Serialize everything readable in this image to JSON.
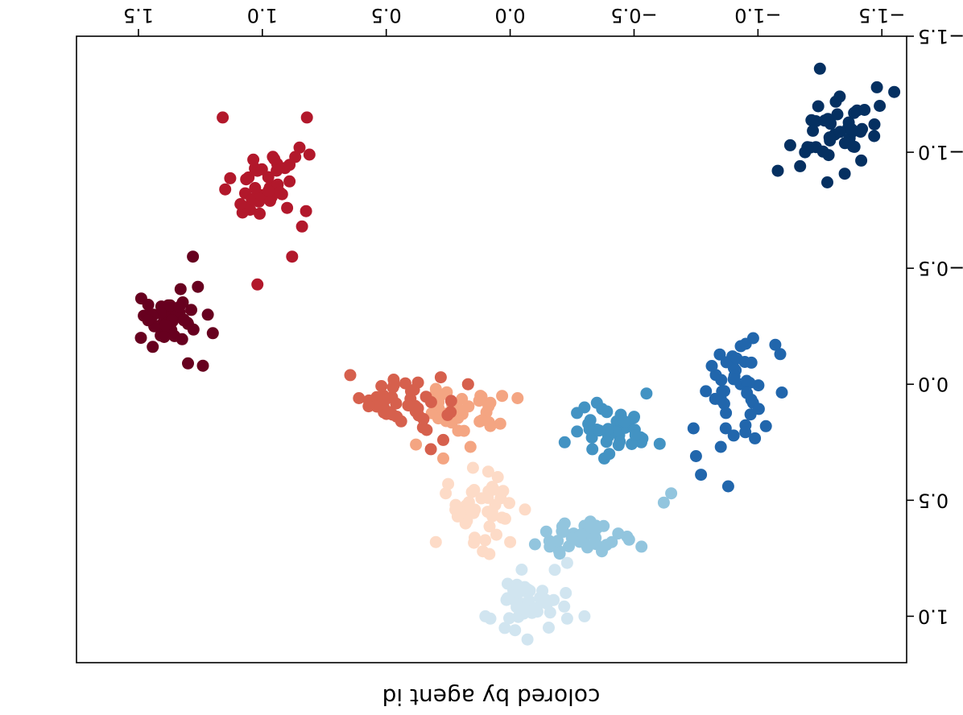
{
  "chart_data": {
    "type": "scatter",
    "title": "",
    "xlabel": "colored by agent id",
    "ylabel": "",
    "xlim": [
      -1.6,
      1.75
    ],
    "ylim": [
      -1.5,
      1.2
    ],
    "x_ticks": [
      -1.5,
      -1.0,
      -0.5,
      0.0,
      0.5,
      1.0,
      1.5
    ],
    "x_tick_labels": [
      "−1.5",
      "−1.0",
      "−0.5",
      "0.0",
      "0.5",
      "1.0",
      "1.5"
    ],
    "y_ticks": [
      -1.5,
      -1.0,
      -0.5,
      0.0,
      0.5,
      1.0
    ],
    "y_tick_labels": [
      "−1.5",
      "−1.0",
      "−0.5",
      "0.0",
      "0.5",
      "1.0"
    ],
    "grid": false,
    "legend": false,
    "colormap": "RdBu",
    "series": [
      {
        "color": "#053061",
        "center": [
          -1.32,
          -1.08
        ],
        "spread": [
          0.14,
          0.12
        ],
        "points": [
          [
            -1.28,
            -0.87
          ],
          [
            -1.55,
            -1.26
          ],
          [
            -1.48,
            -1.28
          ],
          [
            -1.17,
            -0.94
          ],
          [
            -1.21,
            -1.02
          ],
          [
            -1.4,
            -1.18
          ],
          [
            -1.25,
            -1.36
          ],
          [
            -1.47,
            -1.12
          ],
          [
            -1.13,
            -1.03
          ],
          [
            -1.08,
            -0.92
          ],
          [
            -1.33,
            -1.24
          ],
          [
            -1.37,
            -1.06
          ],
          [
            -1.19,
            -1.0
          ],
          [
            -1.42,
            -1.1
          ]
        ]
      },
      {
        "color": "#2166ac",
        "center": [
          -0.92,
          0.03
        ],
        "spread": [
          0.12,
          0.18
        ],
        "points": [
          [
            -0.88,
            0.44
          ],
          [
            -0.77,
            0.39
          ],
          [
            -0.75,
            0.31
          ],
          [
            -0.74,
            0.19
          ],
          [
            -0.85,
            0.27
          ],
          [
            -0.97,
            0.13
          ],
          [
            -0.93,
            0.0
          ],
          [
            -0.91,
            -0.06
          ],
          [
            -1.09,
            -0.13
          ],
          [
            -1.07,
            -0.17
          ],
          [
            -0.98,
            0.08
          ],
          [
            -0.79,
            0.03
          ],
          [
            -0.83,
            -0.04
          ],
          [
            -0.87,
            0.19
          ]
        ]
      },
      {
        "color": "#4393c3",
        "center": [
          -0.42,
          0.18
        ],
        "spread": [
          0.14,
          0.09
        ],
        "points": [
          [
            -0.38,
            0.32
          ],
          [
            -0.4,
            0.3
          ],
          [
            -0.22,
            0.25
          ],
          [
            -0.33,
            0.23
          ],
          [
            -0.5,
            0.14
          ],
          [
            -0.55,
            0.04
          ],
          [
            -0.35,
            0.08
          ],
          [
            -0.43,
            0.16
          ],
          [
            -0.39,
            0.12
          ],
          [
            -0.48,
            0.18
          ],
          [
            -0.3,
            0.1
          ],
          [
            -0.44,
            0.22
          ]
        ]
      },
      {
        "color": "#92c5de",
        "center": [
          -0.27,
          0.66
        ],
        "spread": [
          0.17,
          0.07
        ],
        "points": [
          [
            -0.65,
            0.47
          ],
          [
            -0.62,
            0.51
          ],
          [
            -0.53,
            0.7
          ],
          [
            -0.34,
            0.64
          ],
          [
            -0.22,
            0.6
          ],
          [
            -0.1,
            0.69
          ],
          [
            -0.41,
            0.68
          ],
          [
            -0.2,
            0.73
          ],
          [
            -0.16,
            0.7
          ],
          [
            -0.48,
            0.67
          ],
          [
            -0.3,
            0.61
          ],
          [
            -0.37,
            0.72
          ]
        ]
      },
      {
        "color": "#d1e5f0",
        "center": [
          -0.07,
          0.93
        ],
        "spread": [
          0.12,
          0.1
        ],
        "points": [
          [
            0.1,
            1.0
          ],
          [
            0.08,
            1.01
          ],
          [
            -0.3,
            1.0
          ],
          [
            -0.23,
            1.01
          ],
          [
            -0.02,
            1.06
          ],
          [
            -0.07,
            1.1
          ],
          [
            -0.13,
            0.89
          ],
          [
            0.01,
            0.86
          ],
          [
            -0.18,
            0.8
          ],
          [
            -0.23,
            0.77
          ],
          [
            -0.05,
            0.95
          ],
          [
            0.0,
            0.92
          ],
          [
            -0.11,
            0.98
          ]
        ]
      },
      {
        "color": "#fddbc7",
        "center": [
          0.12,
          0.55
        ],
        "spread": [
          0.1,
          0.12
        ],
        "points": [
          [
            0.11,
            0.72
          ],
          [
            0.0,
            0.68
          ],
          [
            0.02,
            0.58
          ],
          [
            -0.06,
            0.54
          ],
          [
            0.22,
            0.52
          ],
          [
            0.26,
            0.47
          ],
          [
            0.15,
            0.36
          ],
          [
            0.05,
            0.4
          ],
          [
            0.18,
            0.6
          ],
          [
            0.09,
            0.49
          ],
          [
            0.3,
            0.68
          ],
          [
            0.25,
            0.43
          ]
        ]
      },
      {
        "color": "#f4a582",
        "center": [
          0.2,
          0.12
        ],
        "spread": [
          0.14,
          0.09
        ],
        "points": [
          [
            0.27,
            0.32
          ],
          [
            0.04,
            0.17
          ],
          [
            -0.03,
            0.06
          ],
          [
            0.08,
            0.08
          ],
          [
            0.17,
            0.0
          ],
          [
            0.3,
            0.11
          ],
          [
            0.38,
            0.26
          ],
          [
            0.21,
            0.2
          ],
          [
            0.12,
            0.05
          ],
          [
            0.3,
            0.02
          ],
          [
            0.16,
            0.27
          ],
          [
            0.08,
            0.18
          ]
        ]
      },
      {
        "color": "#d6604d",
        "center": [
          0.42,
          0.06
        ],
        "spread": [
          0.15,
          0.11
        ],
        "points": [
          [
            0.61,
            0.06
          ],
          [
            0.57,
            0.07
          ],
          [
            0.44,
            0.16
          ],
          [
            0.27,
            0.24
          ],
          [
            0.32,
            0.28
          ],
          [
            0.28,
            -0.03
          ],
          [
            0.47,
            -0.02
          ],
          [
            0.4,
            0.03
          ],
          [
            0.17,
            0.0
          ],
          [
            0.51,
            0.1
          ],
          [
            0.35,
            0.15
          ],
          [
            0.24,
            0.12
          ]
        ]
      },
      {
        "color": "#b2182b",
        "center": [
          1.0,
          -0.85
        ],
        "spread": [
          0.12,
          0.14
        ],
        "points": [
          [
            1.02,
            -0.43
          ],
          [
            0.88,
            -0.55
          ],
          [
            0.84,
            -0.68
          ],
          [
            0.9,
            -0.76
          ],
          [
            1.08,
            -0.74
          ],
          [
            1.15,
            -0.84
          ],
          [
            1.02,
            -0.92
          ],
          [
            0.94,
            -0.95
          ],
          [
            0.97,
            -0.82
          ],
          [
            1.03,
            -0.93
          ],
          [
            0.85,
            -1.02
          ],
          [
            0.81,
            -0.99
          ],
          [
            1.16,
            -1.15
          ],
          [
            0.82,
            -1.15
          ]
        ]
      },
      {
        "color": "#67001f",
        "center": [
          1.38,
          -0.28
        ],
        "spread": [
          0.11,
          0.09
        ],
        "points": [
          [
            1.3,
            -0.09
          ],
          [
            1.24,
            -0.08
          ],
          [
            1.49,
            -0.2
          ],
          [
            1.3,
            -0.26
          ],
          [
            1.2,
            -0.22
          ],
          [
            1.44,
            -0.3
          ],
          [
            1.38,
            -0.34
          ],
          [
            1.33,
            -0.41
          ],
          [
            1.26,
            -0.42
          ],
          [
            1.28,
            -0.55
          ],
          [
            1.41,
            -0.21
          ],
          [
            1.22,
            -0.3
          ]
        ]
      }
    ]
  }
}
